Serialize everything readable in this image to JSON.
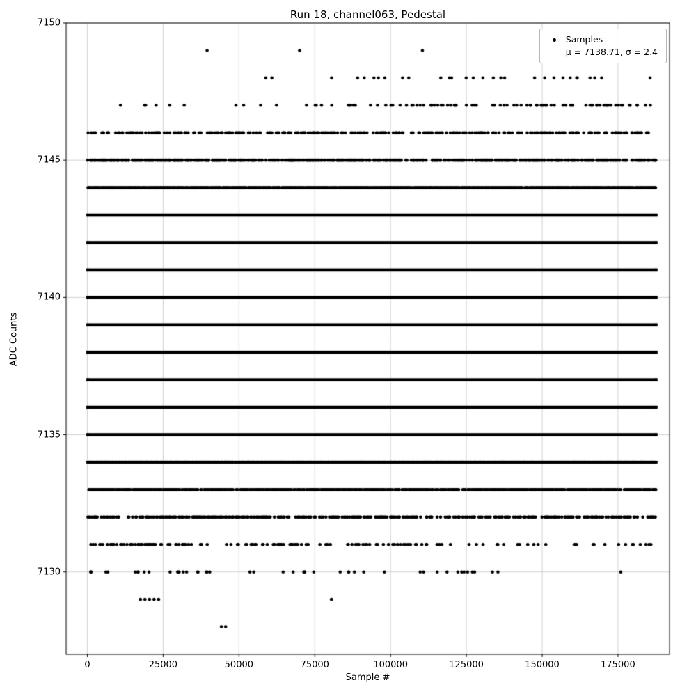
{
  "chart_data": {
    "type": "scatter",
    "title": "Run 18, channel063, Pedestal",
    "xlabel": "Sample #",
    "ylabel": "ADC Counts",
    "xlim": [
      -7000,
      192000
    ],
    "ylim": [
      7127,
      7150
    ],
    "data_x_range": [
      200,
      187500
    ],
    "xticks": {
      "values": [
        0,
        25000,
        50000,
        75000,
        100000,
        125000,
        150000,
        175000
      ],
      "labels": [
        "0",
        "25000",
        "50000",
        "75000",
        "100000",
        "125000",
        "150000",
        "175000"
      ]
    },
    "yticks": {
      "values": [
        7130,
        7135,
        7140,
        7145,
        7150
      ],
      "labels": [
        "7130",
        "7135",
        "7140",
        "7145",
        "7150"
      ]
    },
    "grid": true,
    "grid_color": "#cccccc",
    "marker": {
      "shape": "dot",
      "color": "#000000"
    },
    "legend": {
      "label": "Samples",
      "stats": "μ = 7138.71, σ = 2.4",
      "position": "upper right"
    },
    "mean": 7138.71,
    "sigma": 2.4,
    "bands": [
      {
        "adc": 7149,
        "xs": [
          39500,
          70000,
          110500,
          172500
        ]
      },
      {
        "adc": 7148,
        "coverage": 0.06,
        "bias": "right",
        "xmin": 52000
      },
      {
        "adc": 7147,
        "coverage": 0.14,
        "bias": "right"
      },
      {
        "adc": 7146,
        "coverage": 0.38
      },
      {
        "adc": 7145,
        "coverage": 0.68
      },
      {
        "adc": 7144,
        "coverage": 0.97
      },
      {
        "adc": 7143,
        "solid": true
      },
      {
        "adc": 7142,
        "solid": true
      },
      {
        "adc": 7141,
        "solid": true
      },
      {
        "adc": 7140,
        "solid": true
      },
      {
        "adc": 7139,
        "solid": true
      },
      {
        "adc": 7138,
        "solid": true
      },
      {
        "adc": 7137,
        "solid": true
      },
      {
        "adc": 7136,
        "solid": true
      },
      {
        "adc": 7135,
        "solid": true
      },
      {
        "adc": 7134,
        "coverage": 0.99
      },
      {
        "adc": 7133,
        "coverage": 0.8
      },
      {
        "adc": 7132,
        "coverage": 0.5
      },
      {
        "adc": 7131,
        "coverage": 0.22,
        "bias": "left"
      },
      {
        "adc": 7130,
        "count": 48,
        "bias": "left"
      },
      {
        "adc": 7129,
        "xs": [
          17500,
          19000,
          20500,
          22000,
          23500,
          80500
        ]
      },
      {
        "adc": 7128,
        "xs": [
          44200,
          45600
        ]
      }
    ]
  }
}
